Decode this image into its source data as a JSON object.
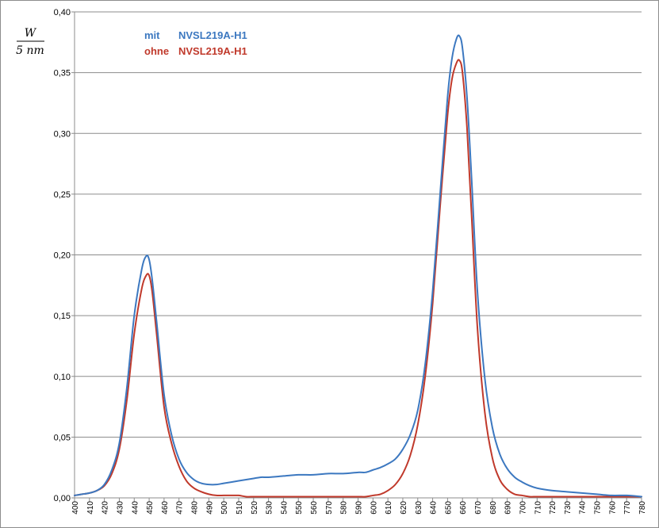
{
  "chart_data": {
    "type": "line",
    "title": "",
    "xlabel": "",
    "ylabel_numerator": "W",
    "ylabel_denominator": "5 nm",
    "xlim": [
      400,
      780
    ],
    "ylim": [
      0,
      0.4
    ],
    "grid": true,
    "legend_position": "top-left",
    "x_ticks": [
      "400",
      "410",
      "420",
      "430",
      "440",
      "450",
      "460",
      "470",
      "480",
      "490",
      "500",
      "510",
      "520",
      "530",
      "540",
      "550",
      "560",
      "570",
      "580",
      "590",
      "600",
      "610",
      "620",
      "630",
      "640",
      "650",
      "660",
      "670",
      "680",
      "690",
      "700",
      "710",
      "720",
      "730",
      "740",
      "750",
      "760",
      "770",
      "780"
    ],
    "y_ticks": [
      "0,00",
      "0,05",
      "0,10",
      "0,15",
      "0,20",
      "0,25",
      "0,30",
      "0,35",
      "0,40"
    ],
    "x": [
      400,
      405,
      410,
      415,
      420,
      425,
      430,
      435,
      440,
      445,
      448,
      450,
      452,
      455,
      460,
      465,
      470,
      475,
      480,
      485,
      490,
      495,
      500,
      505,
      510,
      515,
      520,
      525,
      530,
      540,
      550,
      560,
      570,
      580,
      590,
      595,
      600,
      605,
      610,
      615,
      620,
      625,
      630,
      635,
      640,
      645,
      650,
      653,
      656,
      658,
      660,
      663,
      666,
      670,
      675,
      680,
      685,
      690,
      695,
      700,
      705,
      710,
      720,
      730,
      740,
      750,
      760,
      770,
      780
    ],
    "series": [
      {
        "name_prefix": "mit",
        "name_model": "NVSL219A-H1",
        "color": "#3c78c0",
        "values": [
          0.002,
          0.003,
          0.004,
          0.006,
          0.011,
          0.023,
          0.045,
          0.09,
          0.15,
          0.188,
          0.199,
          0.196,
          0.18,
          0.145,
          0.085,
          0.052,
          0.032,
          0.021,
          0.015,
          0.012,
          0.011,
          0.011,
          0.012,
          0.013,
          0.014,
          0.015,
          0.016,
          0.017,
          0.017,
          0.018,
          0.019,
          0.019,
          0.02,
          0.02,
          0.021,
          0.021,
          0.023,
          0.025,
          0.028,
          0.032,
          0.04,
          0.052,
          0.072,
          0.11,
          0.17,
          0.25,
          0.33,
          0.362,
          0.378,
          0.38,
          0.37,
          0.33,
          0.265,
          0.17,
          0.098,
          0.058,
          0.036,
          0.024,
          0.017,
          0.013,
          0.01,
          0.008,
          0.006,
          0.005,
          0.004,
          0.003,
          0.002,
          0.002,
          0.001
        ]
      },
      {
        "name_prefix": "ohne",
        "name_model": "NVSL219A-H1",
        "color": "#c0392b",
        "values": [
          0.002,
          0.003,
          0.004,
          0.006,
          0.01,
          0.02,
          0.04,
          0.08,
          0.135,
          0.172,
          0.183,
          0.183,
          0.17,
          0.135,
          0.075,
          0.045,
          0.026,
          0.014,
          0.008,
          0.005,
          0.003,
          0.002,
          0.002,
          0.002,
          0.002,
          0.001,
          0.001,
          0.001,
          0.001,
          0.001,
          0.001,
          0.001,
          0.001,
          0.001,
          0.001,
          0.001,
          0.002,
          0.003,
          0.006,
          0.011,
          0.02,
          0.035,
          0.06,
          0.1,
          0.16,
          0.24,
          0.315,
          0.345,
          0.358,
          0.36,
          0.35,
          0.305,
          0.235,
          0.14,
          0.07,
          0.033,
          0.015,
          0.007,
          0.003,
          0.002,
          0.001,
          0.001,
          0.001,
          0.001,
          0.001,
          0.001,
          0.001,
          0.001,
          0.001
        ]
      }
    ]
  }
}
